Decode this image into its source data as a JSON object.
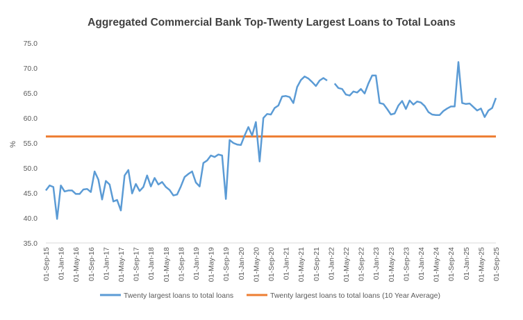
{
  "chart_data": {
    "type": "line",
    "title": "Aggregated Commercial Bank Top-Twenty Largest Loans to Total Loans",
    "xlabel": "",
    "ylabel": "%",
    "ylim": [
      35.0,
      75.0
    ],
    "yticks": [
      "35.0",
      "40.0",
      "45.0",
      "50.0",
      "55.0",
      "60.0",
      "65.0",
      "70.0",
      "75.0"
    ],
    "grid": false,
    "legend_position": "bottom",
    "x_start": "2015-09",
    "x_end": "2025-09",
    "xtick_labels": [
      "01-Sep-15",
      "01-Jan-16",
      "01-May-16",
      "01-Sep-16",
      "01-Jan-17",
      "01-May-17",
      "01-Sep-17",
      "01-Jan-18",
      "01-May-18",
      "01-Sep-18",
      "01-Jan-19",
      "01-May-19",
      "01-Sep-19",
      "01-Jan-20",
      "01-May-20",
      "01-Sep-20",
      "01-Jan-21",
      "01-May-21",
      "01-Sep-21",
      "01-Jan-22",
      "01-May-22",
      "01-Sep-22",
      "01-Jan-23",
      "01-May-23",
      "01-Sep-23",
      "01-Jan-24",
      "01-May-24",
      "01-Sep-24",
      "01-Jan-25",
      "01-May-25",
      "01-Sep-25"
    ],
    "series": [
      {
        "name": "Twenty largest loans to total loans",
        "color": "#5B9BD5",
        "x_months": [
          0,
          1,
          2,
          3,
          4,
          5,
          6,
          7,
          8,
          9,
          10,
          11,
          12,
          13,
          14,
          15,
          16,
          17,
          18,
          19,
          20,
          21,
          22,
          23,
          24,
          25,
          26,
          27,
          28,
          29,
          30,
          31,
          32,
          33,
          34,
          35,
          36,
          37,
          38,
          39,
          40,
          41,
          42,
          43,
          44,
          45,
          46,
          47,
          48,
          49,
          50,
          51,
          52,
          53,
          54,
          55,
          56,
          57,
          58,
          59,
          60,
          61,
          62,
          63,
          64,
          65,
          66,
          67,
          68,
          69,
          70,
          71,
          72,
          73,
          74,
          75,
          76,
          77,
          78,
          79,
          80,
          81,
          82,
          83,
          84,
          85,
          86,
          87,
          88,
          89,
          90,
          91,
          92,
          93,
          94,
          95,
          96,
          97,
          98,
          99,
          100,
          101,
          102,
          103,
          104,
          105,
          106,
          107,
          108,
          109,
          110,
          111,
          112,
          113,
          114,
          115,
          116,
          117,
          118,
          119,
          120
        ],
        "values": [
          45.5,
          46.5,
          46.2,
          39.8,
          46.5,
          45.3,
          45.5,
          45.5,
          44.8,
          44.8,
          45.7,
          45.8,
          45.2,
          49.3,
          47.7,
          43.7,
          47.4,
          46.7,
          43.3,
          43.6,
          41.5,
          48.5,
          49.6,
          44.9,
          46.8,
          45.4,
          46.2,
          48.5,
          46.3,
          48.0,
          46.7,
          47.2,
          46.2,
          45.6,
          44.5,
          44.7,
          46.3,
          48.2,
          48.8,
          49.3,
          47.1,
          46.3,
          51.0,
          51.5,
          52.5,
          52.2,
          52.7,
          52.5,
          43.8,
          55.6,
          55.0,
          54.7,
          54.6,
          56.5,
          58.2,
          56.5,
          59.2,
          51.3,
          60.0,
          60.8,
          60.7,
          62.0,
          62.5,
          64.3,
          64.4,
          64.2,
          63.0,
          66.2,
          67.6,
          68.3,
          67.9,
          67.2,
          66.4,
          67.5,
          68.0,
          67.5,
          null,
          66.9,
          66.0,
          65.8,
          64.7,
          64.5,
          65.3,
          65.1,
          65.8,
          64.9,
          66.9,
          68.5,
          68.5,
          63.0,
          62.8,
          61.8,
          60.7,
          60.9,
          62.5,
          63.4,
          61.8,
          63.5,
          62.7,
          63.3,
          63.1,
          62.4,
          61.2,
          60.7,
          60.6,
          60.6,
          61.4,
          61.9,
          62.3,
          62.3,
          71.2,
          63.0,
          62.8,
          62.9,
          62.2,
          61.5,
          61.9,
          60.2,
          61.5,
          62.0,
          64.0
        ]
      },
      {
        "name": "Twenty largest loans to total loans (10 Year Average)",
        "color": "#ED7D31",
        "average_value": 56.3
      }
    ]
  }
}
